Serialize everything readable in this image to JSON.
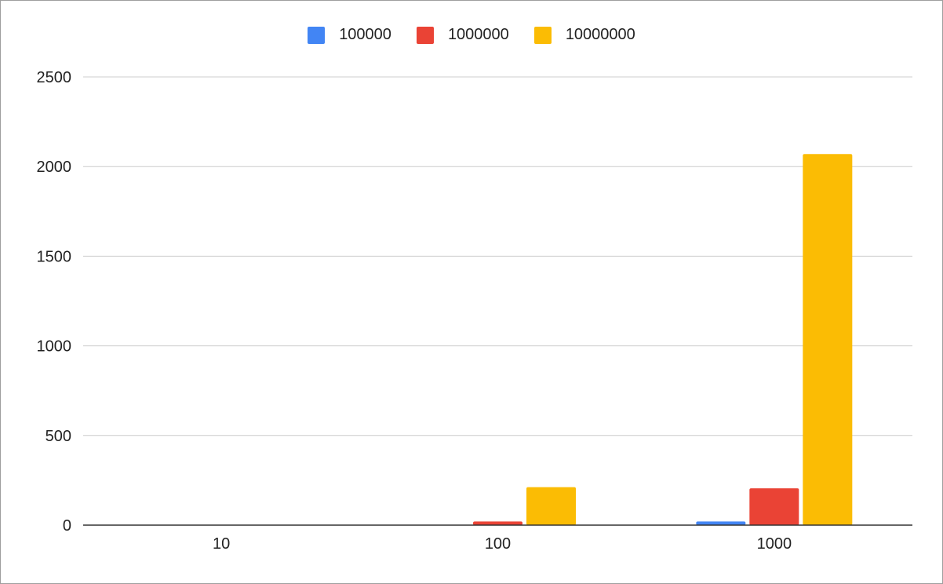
{
  "chart_data": {
    "type": "bar",
    "categories": [
      "10",
      "100",
      "1000"
    ],
    "series": [
      {
        "name": "100000",
        "color": "#4285F4",
        "values": [
          0,
          0,
          20
        ]
      },
      {
        "name": "1000000",
        "color": "#EA4335",
        "values": [
          0,
          20,
          205
        ]
      },
      {
        "name": "10000000",
        "color": "#FBBC04",
        "values": [
          0,
          212,
          2070
        ]
      }
    ],
    "yticks": [
      "0",
      "500",
      "1000",
      "1500",
      "2000",
      "2500"
    ],
    "ylim": [
      0,
      2500
    ],
    "grid": true,
    "legend_position": "top-center",
    "title": "",
    "xlabel": "",
    "ylabel": ""
  }
}
